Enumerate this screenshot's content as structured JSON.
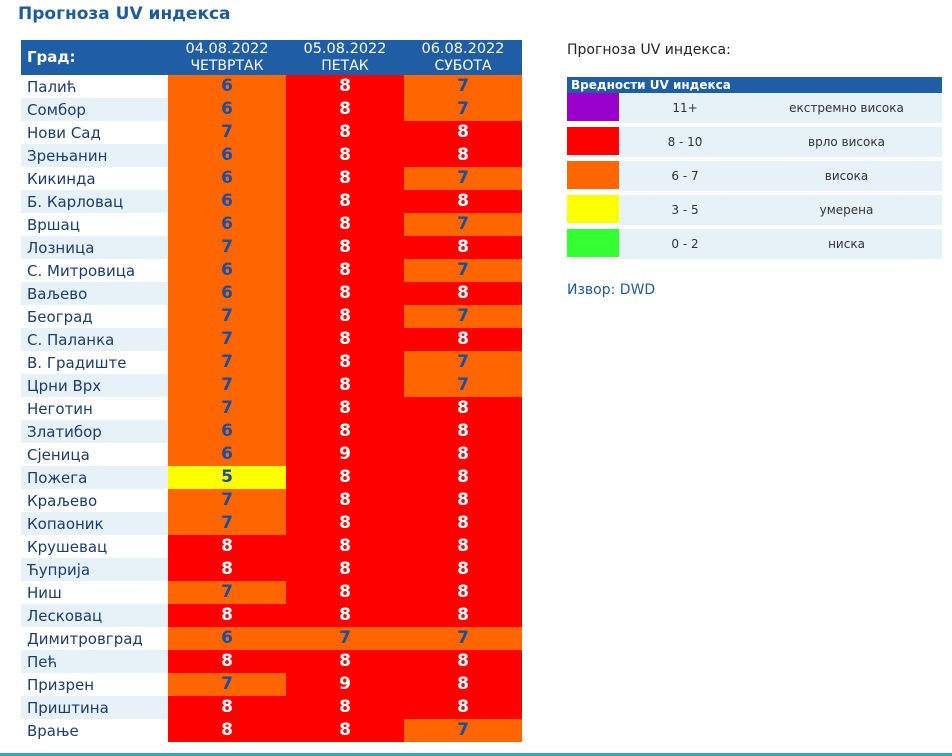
{
  "title": "Прогноза UV индекса",
  "table": {
    "city_header": "Град:",
    "days": [
      {
        "date": "04.08.2022",
        "weekday": "ЧЕТВРТАК"
      },
      {
        "date": "05.08.2022",
        "weekday": "ПЕТАК"
      },
      {
        "date": "06.08.2022",
        "weekday": "СУБОТА"
      }
    ],
    "rows": [
      {
        "city": "Палић",
        "v": [
          "6",
          "8",
          "7"
        ]
      },
      {
        "city": "Сомбор",
        "v": [
          "6",
          "8",
          "7"
        ]
      },
      {
        "city": "Нови Сад",
        "v": [
          "7",
          "8",
          "8"
        ]
      },
      {
        "city": "Зрењанин",
        "v": [
          "6",
          "8",
          "8"
        ]
      },
      {
        "city": "Кикинда",
        "v": [
          "6",
          "8",
          "7"
        ]
      },
      {
        "city": "Б. Карловац",
        "v": [
          "6",
          "8",
          "8"
        ]
      },
      {
        "city": "Вршац",
        "v": [
          "6",
          "8",
          "7"
        ]
      },
      {
        "city": "Лозница",
        "v": [
          "7",
          "8",
          "8"
        ]
      },
      {
        "city": "С. Митровица",
        "v": [
          "6",
          "8",
          "7"
        ]
      },
      {
        "city": "Ваљево",
        "v": [
          "6",
          "8",
          "8"
        ]
      },
      {
        "city": "Београд",
        "v": [
          "7",
          "8",
          "7"
        ]
      },
      {
        "city": "С. Паланка",
        "v": [
          "7",
          "8",
          "8"
        ]
      },
      {
        "city": "В. Градиште",
        "v": [
          "7",
          "8",
          "7"
        ]
      },
      {
        "city": "Црни Врх",
        "v": [
          "7",
          "8",
          "7"
        ]
      },
      {
        "city": "Неготин",
        "v": [
          "7",
          "8",
          "8"
        ]
      },
      {
        "city": "Златибор",
        "v": [
          "6",
          "8",
          "8"
        ]
      },
      {
        "city": "Сјеница",
        "v": [
          "6",
          "9",
          "8"
        ]
      },
      {
        "city": "Пожега",
        "v": [
          "5",
          "8",
          "8"
        ]
      },
      {
        "city": "Краљево",
        "v": [
          "7",
          "8",
          "8"
        ]
      },
      {
        "city": "Копаоник",
        "v": [
          "7",
          "8",
          "8"
        ]
      },
      {
        "city": "Крушевац",
        "v": [
          "8",
          "8",
          "8"
        ]
      },
      {
        "city": "Ћуприја",
        "v": [
          "8",
          "8",
          "8"
        ]
      },
      {
        "city": "Ниш",
        "v": [
          "7",
          "8",
          "8"
        ]
      },
      {
        "city": "Лесковац",
        "v": [
          "8",
          "8",
          "8"
        ]
      },
      {
        "city": "Димитровград",
        "v": [
          "6",
          "7",
          "7"
        ]
      },
      {
        "city": "Пећ",
        "v": [
          "8",
          "8",
          "8"
        ]
      },
      {
        "city": "Призрен",
        "v": [
          "7",
          "9",
          "8"
        ]
      },
      {
        "city": "Приштина",
        "v": [
          "8",
          "8",
          "8"
        ]
      },
      {
        "city": "Врање",
        "v": [
          "8",
          "8",
          "7"
        ]
      }
    ]
  },
  "legend": {
    "title": "Прогноза UV индекса:",
    "header": "Вредности UV индекса",
    "items": [
      {
        "color": "#9900cc",
        "range": "11+",
        "label": "екстремно висока"
      },
      {
        "color": "#ff0000",
        "range": "8 - 10",
        "label": "врло висока"
      },
      {
        "color": "#ff6600",
        "range": "6 - 7",
        "label": "висока"
      },
      {
        "color": "#ffff00",
        "range": "3 - 5",
        "label": "умерена"
      },
      {
        "color": "#33ff33",
        "range": "0 - 2",
        "label": "ниска"
      }
    ]
  },
  "source": "Извор: DWD"
}
